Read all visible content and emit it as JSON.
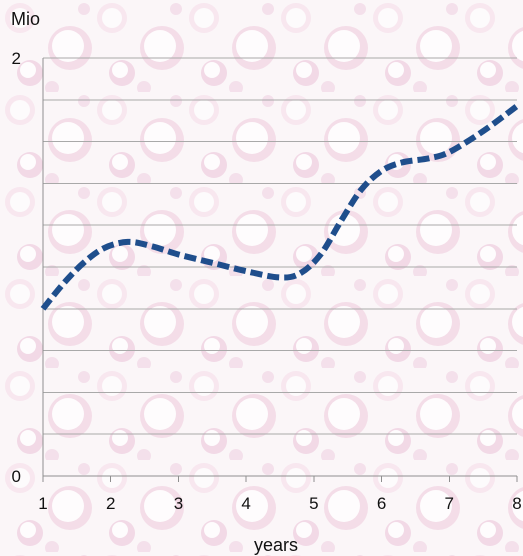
{
  "chart_data": {
    "type": "line",
    "title": "",
    "xlabel": "years",
    "ylabel": "Mio",
    "x_ticks": [
      "1",
      "2",
      "3",
      "4",
      "5",
      "6",
      "7",
      "8"
    ],
    "y_ticks": [
      "0",
      "2"
    ],
    "xlim": [
      1,
      8
    ],
    "ylim": [
      0,
      2
    ],
    "grid": true,
    "gridline_count": 10,
    "legend": "none",
    "series": [
      {
        "color": "#1f4e8c",
        "line_style": "thick-dashed",
        "points": [
          [
            1.0,
            0.8
          ],
          [
            1.3,
            0.92
          ],
          [
            1.6,
            1.02
          ],
          [
            1.9,
            1.09
          ],
          [
            2.25,
            1.12
          ],
          [
            2.6,
            1.1
          ],
          [
            3.0,
            1.06
          ],
          [
            3.5,
            1.02
          ],
          [
            4.0,
            0.98
          ],
          [
            4.5,
            0.95
          ],
          [
            4.8,
            0.97
          ],
          [
            5.1,
            1.06
          ],
          [
            5.4,
            1.22
          ],
          [
            5.7,
            1.37
          ],
          [
            6.0,
            1.46
          ],
          [
            6.3,
            1.5
          ],
          [
            6.7,
            1.52
          ],
          [
            7.0,
            1.55
          ],
          [
            7.5,
            1.65
          ],
          [
            8.0,
            1.77
          ]
        ]
      }
    ]
  },
  "colors": {
    "background": "#ffffff",
    "texture": "#e8bed7",
    "grid": "#a9a9a9",
    "line": "#1f4e8c"
  }
}
